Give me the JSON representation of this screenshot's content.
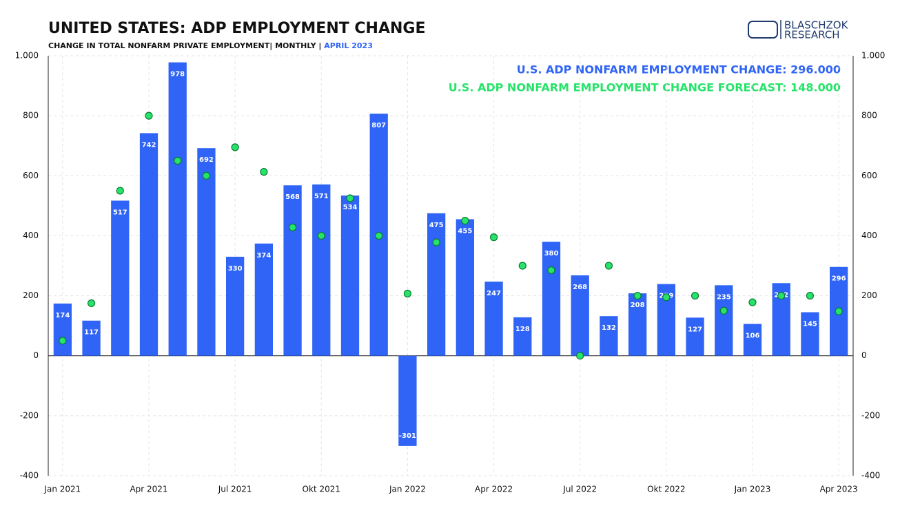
{
  "chart_data": {
    "type": "bar",
    "title": "UNITED STATES: ADP EMPLOYMENT CHANGE",
    "subtitle": "CHANGE IN TOTAL NONFARM PRIVATE EMPLOYMENT| MONTHLY | ",
    "subtitle_date": "APRIL 2023",
    "logo": [
      "BLASCHZOK",
      "RESEARCH"
    ],
    "categories": [
      "Jan 2021",
      null,
      null,
      "Apr 2021",
      null,
      null,
      "Jul 2021",
      null,
      null,
      "Okt 2021",
      null,
      null,
      "Jan 2022",
      null,
      null,
      "Apr 2022",
      null,
      null,
      "Jul 2022",
      null,
      null,
      "Okt 2022",
      null,
      null,
      "Jan 2023",
      null,
      null,
      "Apr 2023"
    ],
    "series": [
      {
        "name": "U.S. ADP NONFARM EMPLOYMENT CHANGE: 296.000",
        "color": "#2f64f6",
        "values": [
          174,
          117,
          517,
          742,
          978,
          692,
          330,
          374,
          568,
          571,
          534,
          807,
          -301,
          475,
          455,
          247,
          128,
          380,
          268,
          132,
          208,
          239,
          127,
          235,
          106,
          242,
          145,
          296
        ]
      },
      {
        "name": "U.S. ADP NONFARM EMPLOYMENT CHANGE FORECAST: 148.000",
        "color": "#27e36a",
        "values": [
          50,
          175,
          550,
          800,
          650,
          600,
          695,
          613,
          428,
          400,
          525,
          400,
          207,
          378,
          450,
          395,
          300,
          285,
          0,
          300,
          200,
          195,
          200,
          150,
          178,
          200,
          200,
          148
        ]
      }
    ],
    "ylim": [
      -400,
      1000
    ],
    "yticks": [
      -400,
      -200,
      0,
      200,
      400,
      600,
      800,
      {
        "value": 1000,
        "label": "1.000"
      }
    ],
    "grid": true
  }
}
